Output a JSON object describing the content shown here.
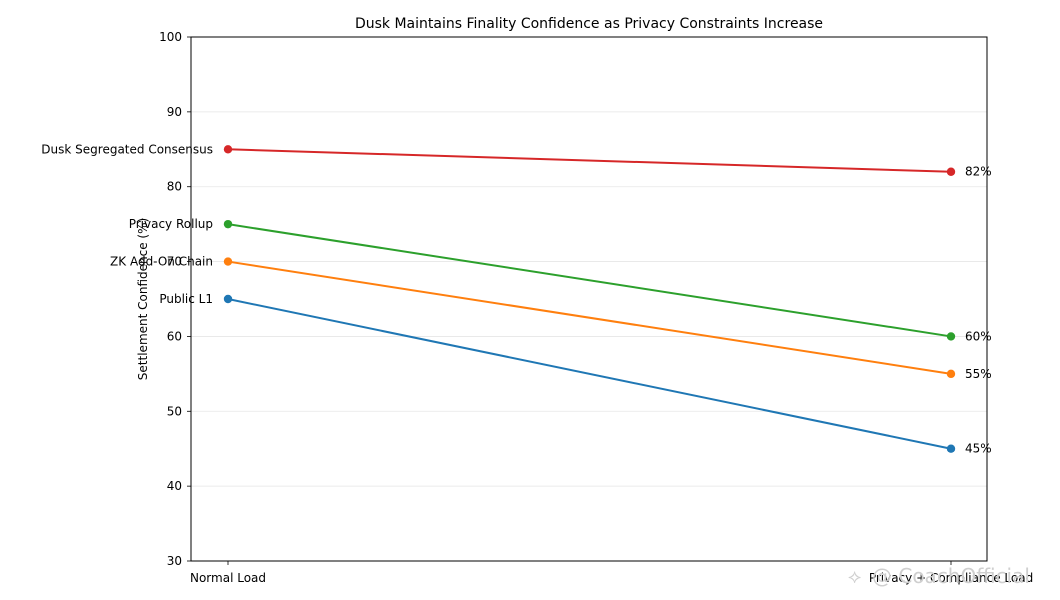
{
  "chart_data": {
    "type": "line",
    "title": "Dusk Maintains Finality Confidence as Privacy Constraints Increase",
    "xlabel": "",
    "ylabel": "Settlement Confidence (%)",
    "categories": [
      "Normal Load",
      "Privacy + Compliance Load"
    ],
    "ylim": [
      30,
      100
    ],
    "yticks": [
      30,
      40,
      50,
      60,
      70,
      80,
      90,
      100
    ],
    "grid": "horizontal",
    "series": [
      {
        "name": "Public L1",
        "values": [
          65,
          45
        ],
        "color": "#1f77b4",
        "end_label": "45%"
      },
      {
        "name": "ZK Add-On Chain",
        "values": [
          70,
          55
        ],
        "color": "#ff7f0e",
        "end_label": "55%"
      },
      {
        "name": "Privacy Rollup",
        "values": [
          75,
          60
        ],
        "color": "#2ca02c",
        "end_label": "60%"
      },
      {
        "name": "Dusk Segregated Consensus",
        "values": [
          85,
          82
        ],
        "color": "#d62728",
        "end_label": "82%"
      }
    ]
  },
  "watermark": {
    "text": "@ CoachOfficial"
  }
}
